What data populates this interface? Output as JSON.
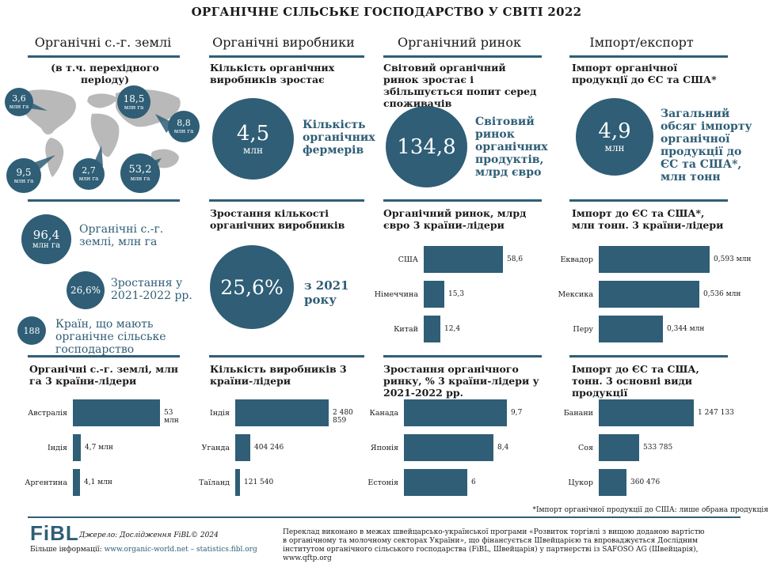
{
  "title": "ОРГАНІЧНЕ СІЛЬСЬКЕ ГОСПОДАРСТВО У СВІТІ 2022",
  "columns": [
    "Органічні с.-г. землі",
    "Органічні виробники",
    "Органічний ринок",
    "Імпорт/експорт"
  ],
  "col1": {
    "subtitle": "(в т.ч. перехідного періоду)",
    "map_labels": [
      {
        "value": "3,6",
        "unit": "млн га"
      },
      {
        "value": "18,5",
        "unit": "млн га"
      },
      {
        "value": "8,8",
        "unit": "млн га"
      },
      {
        "value": "9,5",
        "unit": "млн га"
      },
      {
        "value": "2,7",
        "unit": "млн га"
      },
      {
        "value": "53,2",
        "unit": "млн га"
      }
    ],
    "stat1_value": "96,4",
    "stat1_unit": "млн га",
    "stat1_label": "Органічні с.-г. землі, млн га",
    "stat2_value": "26,6%",
    "stat2_label": "Зростання у 2021-2022 рр.",
    "stat3_value": "188",
    "stat3_label": "Країн, що мають органічне сільське господарство",
    "chart_title": "Органічні с.-г. землі, млн га 3 країни-лідери"
  },
  "col2": {
    "sec1_title": "Кількість органічних виробників зростає",
    "circle1_value": "4,5",
    "circle1_unit": "млн",
    "circle1_label": "Кількість органічних фермерів",
    "sec2_title": "Зростання кількості органічних виробників",
    "circle2_value": "25,6%",
    "circle2_label": "з 2021 року",
    "chart_title": "Кількість виробників 3 країни-лідери"
  },
  "col3": {
    "sec1_title": "Світовий органічний ринок зростає і збільшується попит серед споживачів",
    "circle1_value": "134,8",
    "circle1_label": "Світовий ринок органічних продуктів, млрд євро",
    "chart1_title": "Органічний ринок, млрд євро 3 країни-лідери",
    "chart2_title": "Зростання органічного ринку, % 3 країни-лідери у 2021-2022 рр."
  },
  "col4": {
    "sec1_title": "Імпорт органічної продукції до ЄС та США*",
    "circle1_value": "4,9",
    "circle1_unit": "млн",
    "circle1_label": "Загальний обсяг імпорту органічної продукції до ЄС та США*, млн тонн",
    "chart1_title": "Імпорт до ЄС та США*, млн тонн. 3 країни-лідери",
    "chart2_title": "Імпорт до ЄС та США, тонн. 3 основні види продукції"
  },
  "chart_data": [
    {
      "type": "bar",
      "title": "Органічні с.-г. землі, млн га 3 країни-лідери",
      "categories": [
        "Австралія",
        "Індія",
        "Аргентина"
      ],
      "values": [
        53,
        4.7,
        4.1
      ],
      "value_labels": [
        "53 млн",
        "4,7 млн",
        "4,1 млн"
      ]
    },
    {
      "type": "bar",
      "title": "Кількість виробників 3 країни-лідери",
      "categories": [
        "Індія",
        "Уганда",
        "Таїланд"
      ],
      "values": [
        2480859,
        404246,
        121540
      ],
      "value_labels": [
        "2 480 859",
        "404 246",
        "121 540"
      ]
    },
    {
      "type": "bar",
      "title": "Органічний ринок, млрд євро 3 країни-лідери",
      "categories": [
        "США",
        "Німеччина",
        "Китай"
      ],
      "values": [
        58.6,
        15.3,
        12.4
      ],
      "value_labels": [
        "58,6",
        "15,3",
        "12,4"
      ]
    },
    {
      "type": "bar",
      "title": "Зростання органічного ринку, % 3 країни-лідери у 2021-2022 рр.",
      "categories": [
        "Канада",
        "Японія",
        "Естонія"
      ],
      "values": [
        9.7,
        8.4,
        6
      ],
      "value_labels": [
        "9,7",
        "8,4",
        "6"
      ]
    },
    {
      "type": "bar",
      "title": "Імпорт до ЄС та США*, млн тонн. 3 країни-лідери",
      "categories": [
        "Еквадор",
        "Мексика",
        "Перу"
      ],
      "values": [
        0.593,
        0.536,
        0.344
      ],
      "value_labels": [
        "0,593 млн",
        "0,536 млн",
        "0,344 млн"
      ]
    },
    {
      "type": "bar",
      "title": "Імпорт до ЄС та США, тонн. 3 основні види продукції",
      "categories": [
        "Банани",
        "Соя",
        "Цукор"
      ],
      "values": [
        1247133,
        533785,
        360476
      ],
      "value_labels": [
        "1 247 133",
        "533 785",
        "360 476"
      ]
    }
  ],
  "footnote": "*Імпорт органічної продукції до США: лише обрана продукція",
  "footer": {
    "logo": "FiBL",
    "source": "Джерело: Дослідження FiBL© 2024",
    "more_info_label": "Більше інформації:",
    "more_info_links": "www.organic-world.net – statistics.fibl.org",
    "translation": "Переклад виконано в межах швейцарсько-української програми «Розвиток торгівлі з вищою доданою вартістю в органічному та молочному секторах України», що фінансується Швейцарією та впроваджується Дослідним інститутом органічного сільського господарства (FiBL, Швейцарія) у партнерстві із SAFOSO AG (Швейцарія), www.qftp.org"
  }
}
